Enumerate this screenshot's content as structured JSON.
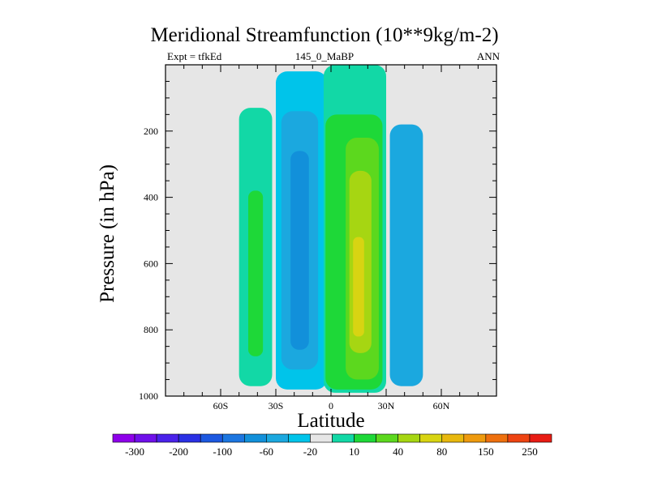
{
  "chart_data": {
    "type": "heatmap",
    "title": "Meridional Streamfunction (10**9kg/m-2)",
    "subtitle_left": "Expt = tfkEd",
    "subtitle_center": "145_0_MaBP",
    "subtitle_right": "ANN",
    "xlabel": "Latitude",
    "ylabel": "Pressure (in hPa)",
    "xlim": [
      -90,
      90
    ],
    "ylim": [
      1000,
      0
    ],
    "y_reversed": true,
    "xticks": [
      {
        "value": -60,
        "label": "60S"
      },
      {
        "value": -30,
        "label": "30S"
      },
      {
        "value": 0,
        "label": "0"
      },
      {
        "value": 30,
        "label": "30N"
      },
      {
        "value": 60,
        "label": "60N"
      }
    ],
    "yticks": [
      {
        "value": 200,
        "label": "200"
      },
      {
        "value": 400,
        "label": "400"
      },
      {
        "value": 600,
        "label": "600"
      },
      {
        "value": 800,
        "label": "800"
      },
      {
        "value": 1000,
        "label": "1000"
      }
    ],
    "background_color": "#e6e6e6",
    "colorbar": {
      "colors": [
        "#8e00ea",
        "#6f10ea",
        "#4a22ea",
        "#2a30e4",
        "#1c58e0",
        "#1c76e0",
        "#1290da",
        "#1ba8df",
        "#00c4ea",
        "#e6e6e6",
        "#12d8a6",
        "#1ed838",
        "#5cd81e",
        "#a6d612",
        "#d8d412",
        "#e8b80e",
        "#ee9a0e",
        "#ee700e",
        "#ee4412",
        "#e81c14"
      ],
      "tick_labels": [
        "-300",
        "-200",
        "-100",
        "-60",
        "-20",
        "10",
        "40",
        "80",
        "150",
        "250"
      ]
    },
    "cells": [
      {
        "lat": [
          -50,
          -32
        ],
        "p": [
          130,
          970
        ],
        "color": "#12d8a6"
      },
      {
        "lat": [
          -45,
          -37
        ],
        "p": [
          380,
          880
        ],
        "color": "#1ed838"
      },
      {
        "lat": [
          -30,
          -2
        ],
        "p": [
          20,
          980
        ],
        "color": "#00c4ea"
      },
      {
        "lat": [
          -27,
          -7
        ],
        "p": [
          140,
          920
        ],
        "color": "#1ba8df"
      },
      {
        "lat": [
          -22,
          -12
        ],
        "p": [
          260,
          860
        ],
        "color": "#1290da"
      },
      {
        "lat": [
          -4,
          30
        ],
        "p": [
          0,
          990
        ],
        "color": "#12d8a6"
      },
      {
        "lat": [
          -3,
          28
        ],
        "p": [
          150,
          980
        ],
        "color": "#1ed838"
      },
      {
        "lat": [
          8,
          26
        ],
        "p": [
          220,
          950
        ],
        "color": "#5cd81e"
      },
      {
        "lat": [
          10,
          22
        ],
        "p": [
          320,
          870
        ],
        "color": "#a6d612"
      },
      {
        "lat": [
          12,
          18
        ],
        "p": [
          520,
          820
        ],
        "color": "#d8d412"
      },
      {
        "lat": [
          32,
          50
        ],
        "p": [
          180,
          970
        ],
        "color": "#1ba8df"
      }
    ]
  }
}
